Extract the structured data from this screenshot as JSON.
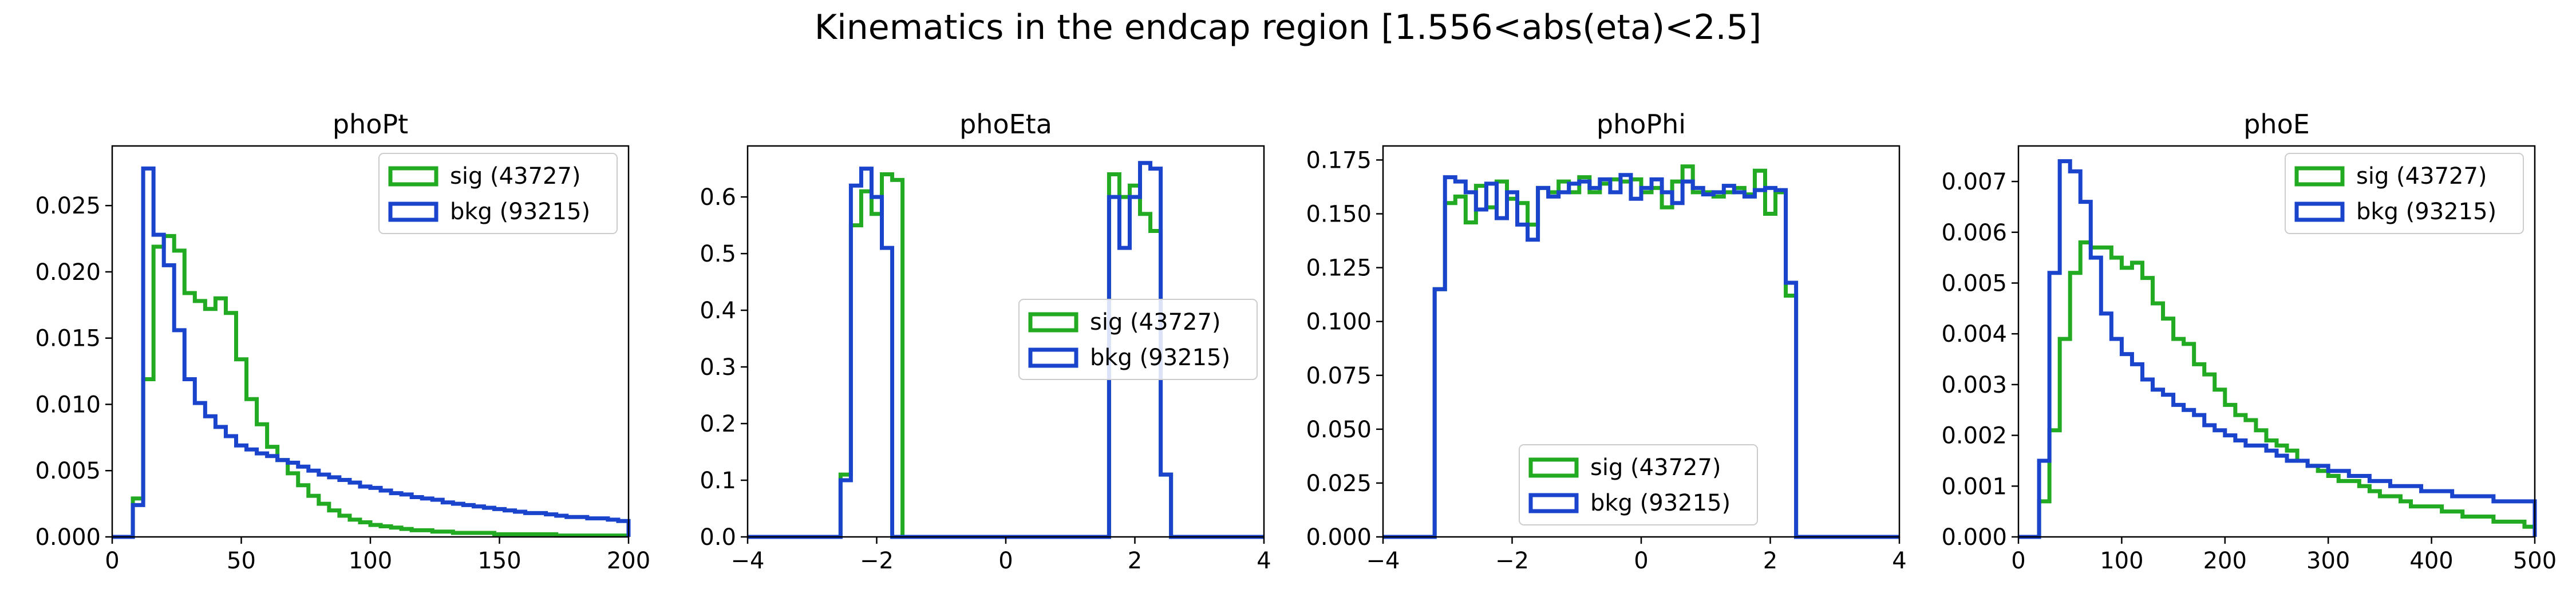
{
  "suptitle": "Kinematics in the endcap region [1.556<abs(eta)<2.5]",
  "colors": {
    "sig": "#22aa22",
    "bkg": "#1a44cc"
  },
  "chart_data": [
    {
      "type": "step-histogram",
      "title": "phoPt",
      "xlim": [
        0,
        200
      ],
      "ylim": [
        0,
        0.0295
      ],
      "xticks": [
        0,
        50,
        100,
        150,
        200
      ],
      "xtick_labels": [
        "0",
        "50",
        "100",
        "150",
        "200"
      ],
      "yticks": [
        0,
        0.005,
        0.01,
        0.015,
        0.02,
        0.025
      ],
      "ytick_labels": [
        "0.000",
        "0.005",
        "0.010",
        "0.015",
        "0.020",
        "0.025"
      ],
      "legend_position": "upper right",
      "bin_edges": [
        0,
        4,
        8,
        12,
        16,
        20,
        24,
        28,
        32,
        36,
        40,
        44,
        48,
        52,
        56,
        60,
        64,
        68,
        72,
        76,
        80,
        84,
        88,
        92,
        96,
        100,
        104,
        108,
        112,
        116,
        120,
        124,
        128,
        132,
        136,
        140,
        144,
        148,
        152,
        156,
        160,
        164,
        168,
        172,
        176,
        180,
        184,
        188,
        192,
        196,
        200
      ],
      "series": [
        {
          "name": "sig (43727)",
          "key": "sig",
          "values": [
            0,
            0,
            0.0029,
            0.0119,
            0.0219,
            0.0227,
            0.0216,
            0.0184,
            0.0178,
            0.0172,
            0.018,
            0.0169,
            0.0134,
            0.0104,
            0.0085,
            0.0068,
            0.0058,
            0.0048,
            0.0039,
            0.0031,
            0.0025,
            0.002,
            0.0016,
            0.0013,
            0.0011,
            0.0009,
            0.0008,
            0.0007,
            0.0006,
            0.0005,
            0.0005,
            0.0004,
            0.0004,
            0.0003,
            0.0003,
            0.0003,
            0.0003,
            0.0002,
            0.0002,
            0.0002,
            0.0002,
            0.0002,
            0.0002,
            0.0001,
            0.0001,
            0.0001,
            0.0001,
            0.0001,
            0.0001,
            0.0001
          ]
        },
        {
          "name": "bkg (93215)",
          "key": "bkg",
          "values": [
            0,
            0,
            0.0024,
            0.0278,
            0.0228,
            0.0205,
            0.0156,
            0.0119,
            0.0101,
            0.0091,
            0.0083,
            0.0076,
            0.0069,
            0.0066,
            0.0063,
            0.0061,
            0.0058,
            0.0056,
            0.0053,
            0.005,
            0.0047,
            0.0045,
            0.0043,
            0.0041,
            0.0038,
            0.0037,
            0.0035,
            0.0033,
            0.0032,
            0.003,
            0.0029,
            0.0028,
            0.0026,
            0.0025,
            0.0024,
            0.0023,
            0.0022,
            0.0021,
            0.002,
            0.0019,
            0.0018,
            0.0018,
            0.0017,
            0.0016,
            0.0015,
            0.0015,
            0.0014,
            0.0014,
            0.0013,
            0.0012
          ]
        }
      ]
    },
    {
      "type": "step-histogram",
      "title": "phoEta",
      "xlim": [
        -4,
        4
      ],
      "ylim": [
        0,
        0.69
      ],
      "xticks": [
        -4,
        -2,
        0,
        2,
        4
      ],
      "xtick_labels": [
        "−4",
        "−2",
        "0",
        "2",
        "4"
      ],
      "yticks": [
        0,
        0.1,
        0.2,
        0.3,
        0.4,
        0.5,
        0.6
      ],
      "ytick_labels": [
        "0.0",
        "0.1",
        "0.2",
        "0.3",
        "0.4",
        "0.5",
        "0.6"
      ],
      "legend_position": "center right",
      "bin_edges": [
        -4.0,
        -3.84,
        -3.68,
        -3.52,
        -3.36,
        -3.2,
        -3.04,
        -2.88,
        -2.72,
        -2.56,
        -2.4,
        -2.24,
        -2.08,
        -1.92,
        -1.76,
        -1.6,
        -1.44,
        -1.28,
        -1.12,
        -0.96,
        -0.8,
        -0.64,
        -0.48,
        -0.32,
        -0.16,
        0.0,
        0.16,
        0.32,
        0.48,
        0.64,
        0.8,
        0.96,
        1.12,
        1.28,
        1.44,
        1.6,
        1.76,
        1.92,
        2.08,
        2.24,
        2.4,
        2.56,
        2.72,
        2.88,
        3.04,
        3.2,
        3.36,
        3.52,
        3.68,
        3.84,
        4.0
      ],
      "series": [
        {
          "name": "sig (43727)",
          "key": "sig",
          "values": [
            0,
            0,
            0,
            0,
            0,
            0,
            0,
            0,
            0,
            0.11,
            0.55,
            0.61,
            0.57,
            0.64,
            0.63,
            0,
            0,
            0,
            0,
            0,
            0,
            0,
            0,
            0,
            0,
            0,
            0,
            0,
            0,
            0,
            0,
            0,
            0,
            0,
            0,
            0.64,
            0.6,
            0.62,
            0.57,
            0.54,
            0.11,
            0,
            0,
            0,
            0,
            0,
            0,
            0,
            0,
            0
          ]
        },
        {
          "name": "bkg (93215)",
          "key": "bkg",
          "values": [
            0,
            0,
            0,
            0,
            0,
            0,
            0,
            0,
            0,
            0.1,
            0.62,
            0.65,
            0.6,
            0.51,
            0,
            0,
            0,
            0,
            0,
            0,
            0,
            0,
            0,
            0,
            0,
            0,
            0,
            0,
            0,
            0,
            0,
            0,
            0,
            0,
            0,
            0.6,
            0.51,
            0.6,
            0.66,
            0.65,
            0.11,
            0,
            0,
            0,
            0,
            0,
            0,
            0,
            0,
            0
          ]
        }
      ]
    },
    {
      "type": "step-histogram",
      "title": "phoPhi",
      "xlim": [
        -4,
        4
      ],
      "ylim": [
        0,
        0.1815
      ],
      "xticks": [
        -4,
        -2,
        0,
        2,
        4
      ],
      "xtick_labels": [
        "−4",
        "−2",
        "0",
        "2",
        "4"
      ],
      "yticks": [
        0,
        0.025,
        0.05,
        0.075,
        0.1,
        0.125,
        0.15,
        0.175
      ],
      "ytick_labels": [
        "0.000",
        "0.025",
        "0.050",
        "0.075",
        "0.100",
        "0.125",
        "0.150",
        "0.175"
      ],
      "legend_position": "lower center",
      "bin_edges": [
        -4.0,
        -3.84,
        -3.68,
        -3.52,
        -3.36,
        -3.2,
        -3.04,
        -2.88,
        -2.72,
        -2.56,
        -2.4,
        -2.24,
        -2.08,
        -1.92,
        -1.76,
        -1.6,
        -1.44,
        -1.28,
        -1.12,
        -0.96,
        -0.8,
        -0.64,
        -0.48,
        -0.32,
        -0.16,
        0.0,
        0.16,
        0.32,
        0.48,
        0.64,
        0.8,
        0.96,
        1.12,
        1.28,
        1.44,
        1.6,
        1.76,
        1.92,
        2.08,
        2.24,
        2.4,
        2.56,
        2.72,
        2.88,
        3.04,
        3.2,
        3.36,
        3.52,
        3.68,
        3.84,
        4.0
      ],
      "series": [
        {
          "name": "sig (43727)",
          "key": "sig",
          "values": [
            0,
            0,
            0,
            0,
            0,
            0.115,
            0.155,
            0.158,
            0.146,
            0.163,
            0.153,
            0.165,
            0.157,
            0.155,
            0.145,
            0.162,
            0.16,
            0.165,
            0.16,
            0.167,
            0.16,
            0.164,
            0.166,
            0.165,
            0.166,
            0.16,
            0.162,
            0.153,
            0.165,
            0.172,
            0.16,
            0.16,
            0.158,
            0.16,
            0.162,
            0.159,
            0.17,
            0.15,
            0.16,
            0.112,
            0,
            0,
            0,
            0,
            0,
            0,
            0,
            0,
            0,
            0
          ]
        },
        {
          "name": "bkg (93215)",
          "key": "bkg",
          "values": [
            0,
            0,
            0,
            0,
            0,
            0.115,
            0.167,
            0.165,
            0.16,
            0.152,
            0.164,
            0.148,
            0.16,
            0.145,
            0.138,
            0.162,
            0.158,
            0.16,
            0.164,
            0.165,
            0.162,
            0.166,
            0.16,
            0.168,
            0.157,
            0.162,
            0.166,
            0.16,
            0.155,
            0.165,
            0.162,
            0.159,
            0.16,
            0.163,
            0.16,
            0.158,
            0.161,
            0.162,
            0.161,
            0.118,
            0,
            0,
            0,
            0,
            0,
            0,
            0,
            0,
            0,
            0
          ]
        }
      ]
    },
    {
      "type": "step-histogram",
      "title": "phoE",
      "xlim": [
        0,
        500
      ],
      "ylim": [
        0,
        0.0077
      ],
      "xticks": [
        0,
        100,
        200,
        300,
        400,
        500
      ],
      "xtick_labels": [
        "0",
        "100",
        "200",
        "300",
        "400",
        "500"
      ],
      "yticks": [
        0,
        0.001,
        0.002,
        0.003,
        0.004,
        0.005,
        0.006,
        0.007
      ],
      "ytick_labels": [
        "0.000",
        "0.001",
        "0.002",
        "0.003",
        "0.004",
        "0.005",
        "0.006",
        "0.007"
      ],
      "legend_position": "upper right",
      "bin_edges": [
        0,
        10,
        20,
        30,
        40,
        50,
        60,
        70,
        80,
        90,
        100,
        110,
        120,
        130,
        140,
        150,
        160,
        170,
        180,
        190,
        200,
        210,
        220,
        230,
        240,
        250,
        260,
        270,
        280,
        290,
        300,
        310,
        320,
        330,
        340,
        350,
        360,
        370,
        380,
        390,
        400,
        410,
        420,
        430,
        440,
        450,
        460,
        470,
        480,
        490,
        500
      ],
      "series": [
        {
          "name": "sig (43727)",
          "key": "sig",
          "values": [
            0,
            0,
            0.0007,
            0.0021,
            0.0039,
            0.0052,
            0.0058,
            0.0057,
            0.0057,
            0.0055,
            0.0053,
            0.0054,
            0.0051,
            0.0046,
            0.0043,
            0.0039,
            0.0038,
            0.0034,
            0.0032,
            0.0029,
            0.0026,
            0.0024,
            0.0023,
            0.0021,
            0.0019,
            0.0018,
            0.0017,
            0.0015,
            0.0014,
            0.0013,
            0.0012,
            0.0011,
            0.0011,
            0.001,
            0.0009,
            0.0008,
            0.0008,
            0.0007,
            0.0006,
            0.0006,
            0.0006,
            0.0005,
            0.0005,
            0.0004,
            0.0004,
            0.0004,
            0.0003,
            0.0003,
            0.0003,
            0.0002
          ]
        },
        {
          "name": "bkg (93215)",
          "key": "bkg",
          "values": [
            0,
            0,
            0.0015,
            0.0052,
            0.0074,
            0.0072,
            0.0066,
            0.0055,
            0.0044,
            0.0039,
            0.0036,
            0.0034,
            0.0031,
            0.0029,
            0.0028,
            0.0026,
            0.0025,
            0.0024,
            0.0022,
            0.0021,
            0.002,
            0.0019,
            0.0018,
            0.0018,
            0.0017,
            0.0016,
            0.0015,
            0.0015,
            0.0014,
            0.0014,
            0.0013,
            0.0013,
            0.0012,
            0.0012,
            0.0011,
            0.0011,
            0.001,
            0.001,
            0.001,
            0.0009,
            0.0009,
            0.0009,
            0.0008,
            0.0008,
            0.0008,
            0.0008,
            0.0007,
            0.0007,
            0.0007,
            0.0007
          ]
        }
      ]
    }
  ]
}
